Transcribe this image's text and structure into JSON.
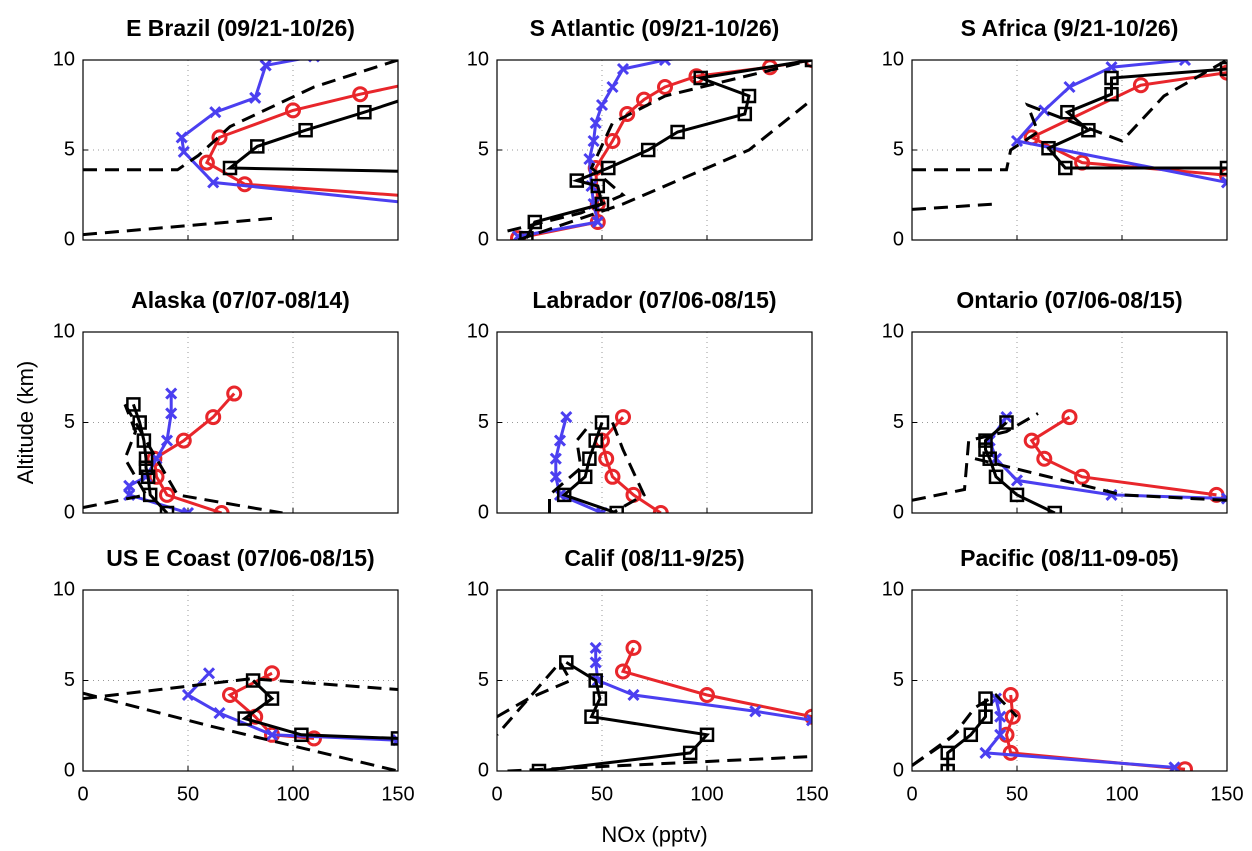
{
  "chart_data": [
    {
      "type": "line",
      "title": "E Brazil (09/21-10/26)",
      "xlim": [
        0,
        150
      ],
      "ylim": [
        0,
        10
      ],
      "xticks": [
        0,
        50,
        100,
        150
      ],
      "yticks": [
        0,
        5,
        10
      ],
      "grid": true,
      "series": [
        {
          "color": "#e8262b",
          "marker": "o",
          "x": [
            160,
            77,
            59,
            65,
            100,
            132,
            160
          ],
          "y": [
            2.4,
            3.1,
            4.3,
            5.7,
            7.2,
            8.1,
            8.8
          ]
        },
        {
          "color": "#4b3ff0",
          "marker": "x",
          "x": [
            160,
            62,
            48,
            47,
            63,
            82,
            87,
            110
          ],
          "y": [
            2.0,
            3.2,
            4.9,
            5.7,
            7.1,
            7.9,
            9.7,
            10.2
          ]
        },
        {
          "color": "#000000",
          "marker": "s",
          "x": [
            160,
            70,
            83,
            106,
            134,
            160
          ],
          "y": [
            3.8,
            4.0,
            5.2,
            6.1,
            7.1,
            8.1
          ]
        },
        {
          "color": "#000000",
          "dash": true,
          "x": [
            0,
            45,
            55,
            70,
            110,
            150
          ],
          "y": [
            3.9,
            3.9,
            4.7,
            6.3,
            8.5,
            10
          ]
        },
        {
          "color": "#000000",
          "dash": true,
          "x": [
            0,
            90
          ],
          "y": [
            0.3,
            1.2
          ]
        }
      ]
    },
    {
      "type": "line",
      "title": "S Atlantic (09/21-10/26)",
      "xlim": [
        0,
        150
      ],
      "ylim": [
        0,
        10
      ],
      "xticks": [
        0,
        50,
        100,
        150
      ],
      "yticks": [
        0,
        5,
        10
      ],
      "grid": true,
      "series": [
        {
          "color": "#e8262b",
          "marker": "o",
          "x": [
            10,
            48,
            48,
            47,
            55,
            62,
            70,
            80,
            95,
            130,
            150
          ],
          "y": [
            0.1,
            1,
            2,
            4,
            5.5,
            7,
            7.8,
            8.5,
            9.1,
            9.6,
            10
          ]
        },
        {
          "color": "#4b3ff0",
          "marker": "x",
          "x": [
            10,
            48,
            46,
            45,
            44,
            46,
            47,
            50,
            55,
            60,
            80,
            100
          ],
          "y": [
            0.2,
            1,
            2,
            3,
            4.5,
            5.5,
            6.5,
            7.5,
            8.5,
            9.5,
            10,
            10.3
          ]
        },
        {
          "color": "#000000",
          "marker": "s",
          "x": [
            14,
            18,
            50,
            48,
            38,
            53,
            72,
            86,
            118,
            120,
            97,
            150
          ],
          "y": [
            0.1,
            1,
            2,
            3,
            3.3,
            4,
            5,
            6,
            7,
            8,
            9,
            10
          ]
        },
        {
          "color": "#000000",
          "dash": true,
          "x": [
            5,
            40,
            60,
            45,
            55,
            80,
            150
          ],
          "y": [
            0.5,
            1.5,
            2.5,
            4,
            6.5,
            8,
            10
          ]
        },
        {
          "color": "#000000",
          "dash": true,
          "x": [
            10,
            60,
            120,
            150
          ],
          "y": [
            0,
            2,
            5,
            7.8
          ]
        }
      ]
    },
    {
      "type": "line",
      "title": "S Africa (9/21-10/26)",
      "xlim": [
        0,
        150
      ],
      "ylim": [
        0,
        10
      ],
      "xticks": [
        0,
        50,
        100,
        150
      ],
      "yticks": [
        0,
        5,
        10
      ],
      "grid": true,
      "series": [
        {
          "color": "#e8262b",
          "marker": "o",
          "x": [
            150,
            81,
            57,
            109,
            150
          ],
          "y": [
            3.6,
            4.3,
            5.7,
            8.6,
            9.3
          ]
        },
        {
          "color": "#4b3ff0",
          "marker": "x",
          "x": [
            150,
            50,
            63,
            75,
            95,
            130
          ],
          "y": [
            3.2,
            5.5,
            7.2,
            8.5,
            9.6,
            10
          ]
        },
        {
          "color": "#000000",
          "marker": "s",
          "x": [
            150,
            73,
            65,
            84,
            74,
            95,
            95,
            150
          ],
          "y": [
            4.0,
            4.0,
            5.1,
            6.1,
            7.1,
            8.1,
            9.0,
            9.5
          ]
        },
        {
          "color": "#000000",
          "dash": true,
          "x": [
            0,
            45,
            47,
            60,
            55,
            100,
            120,
            150
          ],
          "y": [
            3.9,
            3.9,
            5,
            6,
            7.5,
            5.5,
            8,
            10
          ]
        },
        {
          "color": "#000000",
          "dash": true,
          "x": [
            0,
            40
          ],
          "y": [
            1.7,
            2
          ]
        }
      ]
    },
    {
      "type": "line",
      "title": "Alaska (07/07-08/14)",
      "ylabel": "Altitude (km)",
      "xlim": [
        0,
        150
      ],
      "ylim": [
        0,
        10
      ],
      "xticks": [
        0,
        50,
        100,
        150
      ],
      "yticks": [
        0,
        5,
        10
      ],
      "grid": true,
      "series": [
        {
          "color": "#e8262b",
          "marker": "o",
          "x": [
            66,
            40,
            35,
            34,
            48,
            62,
            72
          ],
          "y": [
            0,
            1,
            2,
            3,
            4,
            5.3,
            6.6
          ]
        },
        {
          "color": "#4b3ff0",
          "marker": "x",
          "x": [
            50,
            22,
            22,
            30,
            35,
            40,
            42,
            42
          ],
          "y": [
            0,
            1,
            1.5,
            2,
            3,
            4,
            5.5,
            6.6
          ]
        },
        {
          "color": "#000000",
          "marker": "s",
          "x": [
            40,
            32,
            31,
            30,
            30,
            29,
            27,
            24
          ],
          "y": [
            0,
            1,
            2,
            2.5,
            3,
            4,
            5,
            6
          ]
        },
        {
          "color": "#000000",
          "dash": true,
          "x": [
            0,
            30,
            20,
            25,
            20
          ],
          "y": [
            0.3,
            1,
            3,
            4.5,
            6
          ]
        },
        {
          "color": "#000000",
          "dash": true,
          "x": [
            20,
            45,
            95
          ],
          "y": [
            6,
            1,
            0
          ]
        }
      ]
    },
    {
      "type": "line",
      "title": "Labrador (07/06-08/15)",
      "xlim": [
        0,
        150
      ],
      "ylim": [
        0,
        10
      ],
      "xticks": [
        0,
        50,
        100,
        150
      ],
      "yticks": [
        0,
        5,
        10
      ],
      "grid": true,
      "series": [
        {
          "color": "#e8262b",
          "marker": "o",
          "x": [
            78,
            65,
            55,
            52,
            50,
            60
          ],
          "y": [
            0,
            1,
            2,
            3,
            4,
            5.3
          ]
        },
        {
          "color": "#4b3ff0",
          "marker": "x",
          "x": [
            50,
            30,
            28,
            28,
            30,
            33
          ],
          "y": [
            0,
            1,
            2,
            3,
            4,
            5.3
          ]
        },
        {
          "color": "#000000",
          "marker": "s",
          "x": [
            57,
            32,
            42,
            44,
            47,
            50
          ],
          "y": [
            0,
            1,
            2,
            3,
            4,
            5
          ]
        },
        {
          "color": "#000000",
          "dash": true,
          "x": [
            25,
            25,
            40,
            38,
            45
          ],
          "y": [
            0,
            1,
            2.5,
            4,
            5
          ]
        },
        {
          "color": "#000000",
          "dash": true,
          "x": [
            55,
            60,
            70,
            55
          ],
          "y": [
            5,
            3.5,
            1,
            0
          ]
        }
      ]
    },
    {
      "type": "line",
      "title": "Ontario (07/06-08/15)",
      "xlim": [
        0,
        150
      ],
      "ylim": [
        0,
        10
      ],
      "xticks": [
        0,
        50,
        100,
        150
      ],
      "yticks": [
        0,
        5,
        10
      ],
      "grid": true,
      "series": [
        {
          "color": "#e8262b",
          "marker": "o",
          "x": [
            145,
            81,
            63,
            57,
            75
          ],
          "y": [
            1,
            2,
            3,
            4,
            5.3
          ]
        },
        {
          "color": "#4b3ff0",
          "marker": "x",
          "x": [
            150,
            95,
            50,
            40,
            37,
            45
          ],
          "y": [
            0.8,
            1,
            1.8,
            3,
            4,
            5.3
          ]
        },
        {
          "color": "#000000",
          "marker": "s",
          "x": [
            68,
            50,
            40,
            37,
            35,
            35,
            45
          ],
          "y": [
            0,
            1,
            2,
            3,
            3.5,
            4,
            5
          ]
        },
        {
          "color": "#000000",
          "dash": true,
          "x": [
            0,
            25,
            27,
            45,
            60
          ],
          "y": [
            0.7,
            1.3,
            4,
            4.5,
            5.5
          ]
        },
        {
          "color": "#000000",
          "dash": true,
          "x": [
            30,
            100,
            150
          ],
          "y": [
            3,
            1,
            0.7
          ]
        }
      ]
    },
    {
      "type": "line",
      "title": "US E Coast (07/06-08/15)",
      "xlim": [
        0,
        150
      ],
      "ylim": [
        0,
        10
      ],
      "xticks": [
        0,
        50,
        100,
        150
      ],
      "yticks": [
        0,
        5,
        10
      ],
      "grid": true,
      "series": [
        {
          "color": "#e8262b",
          "marker": "o",
          "x": [
            110,
            90,
            82,
            70,
            90
          ],
          "y": [
            1.8,
            2,
            3,
            4.2,
            5.4
          ]
        },
        {
          "color": "#4b3ff0",
          "marker": "x",
          "x": [
            150,
            90,
            65,
            50,
            60
          ],
          "y": [
            1.7,
            2,
            3.2,
            4.2,
            5.4
          ]
        },
        {
          "color": "#000000",
          "marker": "s",
          "x": [
            150,
            104,
            77,
            90,
            81
          ],
          "y": [
            1.8,
            2,
            2.9,
            4,
            5
          ]
        },
        {
          "color": "#000000",
          "dash": true,
          "x": [
            0,
            80,
            150
          ],
          "y": [
            4,
            5.1,
            4.5
          ]
        },
        {
          "color": "#000000",
          "dash": true,
          "x": [
            0,
            60,
            150
          ],
          "y": [
            4.3,
            2.5,
            0
          ]
        }
      ]
    },
    {
      "type": "line",
      "title": "Calif (08/11-9/25)",
      "xlabel": "NOx (pptv)",
      "xlim": [
        0,
        150
      ],
      "ylim": [
        0,
        10
      ],
      "xticks": [
        0,
        50,
        100,
        150
      ],
      "yticks": [
        0,
        5,
        10
      ],
      "grid": true,
      "series": [
        {
          "color": "#e8262b",
          "marker": "o",
          "x": [
            150,
            100,
            60,
            65
          ],
          "y": [
            3,
            4.2,
            5.5,
            6.8
          ]
        },
        {
          "color": "#4b3ff0",
          "marker": "x",
          "x": [
            150,
            123,
            65,
            48,
            47,
            47
          ],
          "y": [
            2.8,
            3.3,
            4.2,
            5,
            6,
            6.8
          ]
        },
        {
          "color": "#000000",
          "marker": "s",
          "x": [
            20,
            92,
            100,
            45,
            49,
            47,
            33
          ],
          "y": [
            0,
            1,
            2,
            3,
            4,
            5,
            6
          ]
        },
        {
          "color": "#000000",
          "dash": true,
          "x": [
            0,
            15,
            35,
            30,
            0
          ],
          "y": [
            3,
            4,
            5,
            6,
            2
          ]
        },
        {
          "color": "#000000",
          "dash": true,
          "x": [
            5,
            150
          ],
          "y": [
            0,
            0.8
          ]
        }
      ]
    },
    {
      "type": "line",
      "title": "Pacific (08/11-09-05)",
      "xlim": [
        0,
        150
      ],
      "ylim": [
        0,
        10
      ],
      "xticks": [
        0,
        50,
        100,
        150
      ],
      "yticks": [
        0,
        5,
        10
      ],
      "grid": true,
      "series": [
        {
          "color": "#e8262b",
          "marker": "o",
          "x": [
            130,
            47,
            45,
            48,
            47
          ],
          "y": [
            0.1,
            1,
            2,
            3,
            4.2
          ]
        },
        {
          "color": "#4b3ff0",
          "marker": "x",
          "x": [
            125,
            35,
            42,
            42,
            40
          ],
          "y": [
            0.2,
            1,
            2,
            3,
            4
          ]
        },
        {
          "color": "#000000",
          "marker": "s",
          "x": [
            17,
            17,
            28,
            35,
            35
          ],
          "y": [
            0,
            1,
            2,
            3,
            4
          ]
        },
        {
          "color": "#000000",
          "dash": true,
          "x": [
            0,
            20,
            30,
            40,
            50
          ],
          "y": [
            0.3,
            2,
            3.5,
            4.2,
            3
          ]
        },
        {
          "color": "#000000",
          "dash": true,
          "x": [
            0,
            15,
            25
          ],
          "y": [
            0.3,
            1.5,
            2.5
          ]
        }
      ]
    }
  ]
}
